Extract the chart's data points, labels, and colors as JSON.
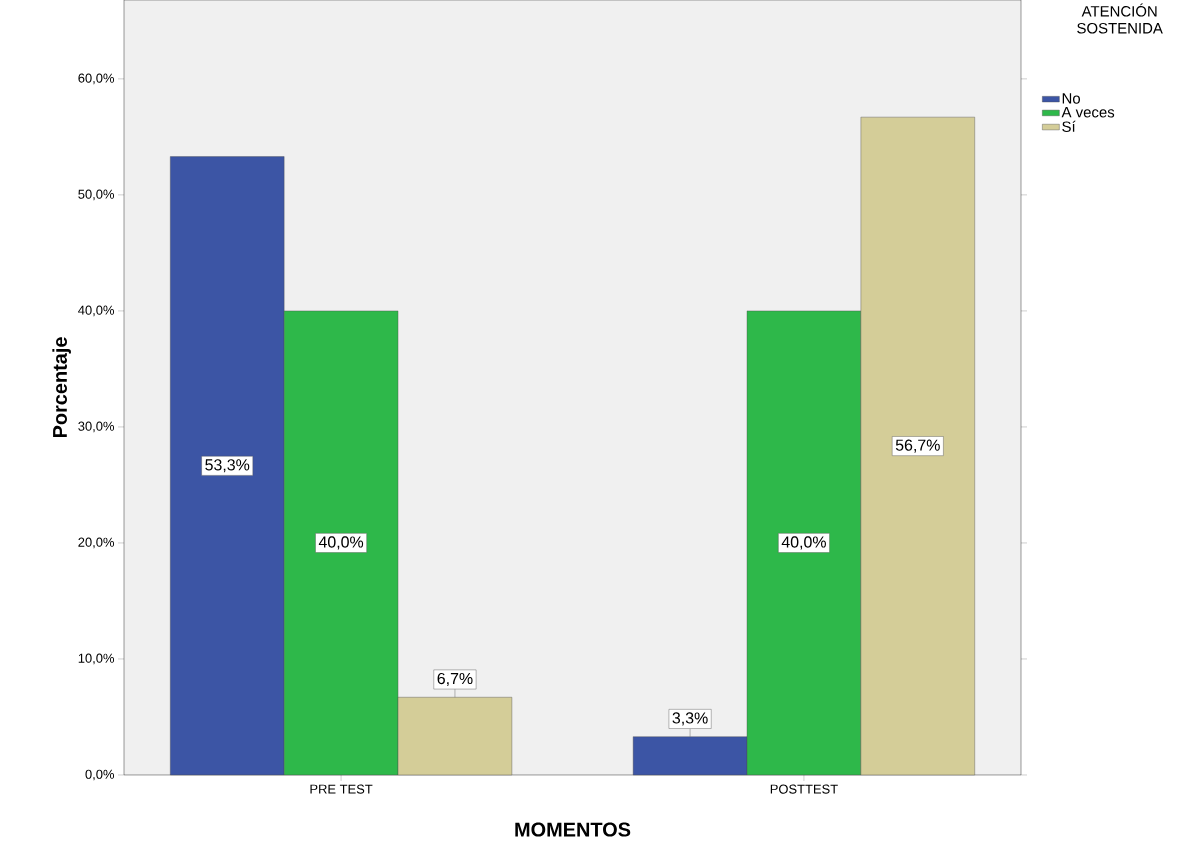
{
  "chart_data": {
    "type": "bar",
    "xlabel": "MOMENTOS",
    "ylabel": "Porcentaje",
    "legend_title": "ATENCIÓN SOSTENIDA",
    "categories": [
      "PRE TEST",
      "POSTTEST"
    ],
    "series": [
      {
        "name": "No",
        "color": "#3c55a5",
        "values": [
          53.3,
          3.3
        ],
        "value_labels": [
          "53,3%",
          "3,3%"
        ]
      },
      {
        "name": "A veces",
        "color": "#2eb84a",
        "values": [
          40.0,
          40.0
        ],
        "value_labels": [
          "40,0%",
          "40,0%"
        ]
      },
      {
        "name": "Sí",
        "color": "#d4cd98",
        "values": [
          6.7,
          56.7
        ],
        "value_labels": [
          "6,7%",
          "56,7%"
        ]
      }
    ],
    "ylim": [
      0,
      66.8
    ],
    "yticks": [
      {
        "value": 0,
        "label": "0,0%"
      },
      {
        "value": 10,
        "label": "10,0%"
      },
      {
        "value": 20,
        "label": "20,0%"
      },
      {
        "value": 30,
        "label": "30,0%"
      },
      {
        "value": 40,
        "label": "40,0%"
      },
      {
        "value": 50,
        "label": "50,0%"
      },
      {
        "value": 60,
        "label": "60,0%"
      }
    ],
    "grid": false,
    "legend": "top right"
  }
}
